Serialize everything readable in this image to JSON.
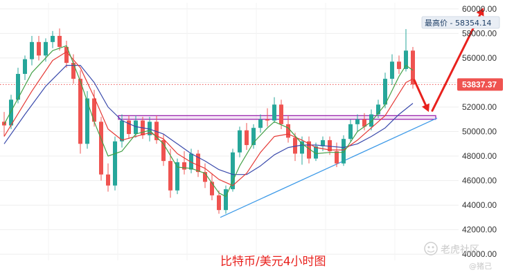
{
  "caption": "比特币/美元4小时图",
  "watermark": {
    "brand": "老虎社区",
    "user": "@猪己"
  },
  "chart_data": {
    "type": "candlestick",
    "title": "",
    "ylim": [
      39500,
      60500
    ],
    "y_ticks": [
      {
        "value": 60000,
        "label": "60000.00"
      },
      {
        "value": 58000,
        "label": "58000.00"
      },
      {
        "value": 56000,
        "label": "56000.00"
      },
      {
        "value": 54000,
        "label": "54000.00"
      },
      {
        "value": 52000,
        "label": "52000.00"
      },
      {
        "value": 50000,
        "label": "50000.00"
      },
      {
        "value": 48000,
        "label": "48000.00"
      },
      {
        "value": 46000,
        "label": "46000.00"
      },
      {
        "value": 44000,
        "label": "44000.00"
      },
      {
        "value": 42000,
        "label": "42000.00"
      },
      {
        "value": 40000,
        "label": "40000.00"
      }
    ],
    "current_price": {
      "value": 53837.37,
      "label": "53837.37"
    },
    "high_label": {
      "text": "最高价 - 58354.14",
      "value": 58354.14
    },
    "colors": {
      "up": "#26a69a",
      "down": "#ef5350",
      "ma_fast": "#43a047",
      "ma_mid": "#e53935",
      "ma_slow": "#3949ab",
      "trendline": "#3d9ae8",
      "resistance": "#9c27b0",
      "arrow": "#e8211d",
      "price_badge": "#ef5350"
    },
    "candles": [
      [
        50800,
        51600,
        49600,
        50500
      ],
      [
        50500,
        53000,
        50200,
        52600
      ],
      [
        52600,
        55200,
        52300,
        54700
      ],
      [
        54700,
        56200,
        54200,
        55900
      ],
      [
        55900,
        57800,
        55400,
        57300
      ],
      [
        57300,
        57800,
        55800,
        56200
      ],
      [
        56200,
        57600,
        55700,
        57300
      ],
      [
        57300,
        58200,
        56800,
        57800
      ],
      [
        57800,
        58400,
        56600,
        56900
      ],
      [
        56900,
        57400,
        55200,
        55600
      ],
      [
        55600,
        56300,
        53900,
        54300
      ],
      [
        54300,
        55000,
        48200,
        49000
      ],
      [
        49000,
        53300,
        48600,
        52700
      ],
      [
        52700,
        53400,
        50400,
        50800
      ],
      [
        50800,
        51200,
        46000,
        46500
      ],
      [
        46500,
        47400,
        45100,
        45600
      ],
      [
        45600,
        49600,
        45200,
        49200
      ],
      [
        49200,
        51400,
        48700,
        50900
      ],
      [
        50900,
        51300,
        49400,
        49800
      ],
      [
        49800,
        51300,
        49500,
        50900
      ],
      [
        50900,
        51200,
        49400,
        49700
      ],
      [
        49700,
        51200,
        49200,
        50800
      ],
      [
        50800,
        51300,
        49000,
        49300
      ],
      [
        49300,
        49800,
        47200,
        47600
      ],
      [
        47600,
        48600,
        44600,
        45200
      ],
      [
        45200,
        47800,
        44900,
        47500
      ],
      [
        47500,
        48400,
        46500,
        46900
      ],
      [
        46900,
        48600,
        46600,
        48200
      ],
      [
        48200,
        48500,
        46300,
        46700
      ],
      [
        46700,
        47400,
        45400,
        45900
      ],
      [
        45900,
        46600,
        44400,
        44800
      ],
      [
        44800,
        45200,
        43300,
        43600
      ],
      [
        43600,
        45600,
        43300,
        45300
      ],
      [
        45300,
        48600,
        45100,
        48300
      ],
      [
        48300,
        50400,
        47900,
        50100
      ],
      [
        50100,
        50700,
        48500,
        48900
      ],
      [
        48900,
        50600,
        48600,
        50300
      ],
      [
        50300,
        51400,
        49900,
        51000
      ],
      [
        51000,
        51900,
        50400,
        50900
      ],
      [
        50900,
        52800,
        50700,
        52200
      ],
      [
        52200,
        52600,
        50200,
        50600
      ],
      [
        50600,
        51300,
        49100,
        49500
      ],
      [
        49500,
        49900,
        47600,
        48200
      ],
      [
        48200,
        49600,
        47300,
        49200
      ],
      [
        49200,
        49600,
        47400,
        47800
      ],
      [
        47800,
        49100,
        47600,
        48800
      ],
      [
        48800,
        49600,
        48400,
        49300
      ],
      [
        49300,
        49600,
        48100,
        48400
      ],
      [
        48400,
        49100,
        47100,
        47400
      ],
      [
        47400,
        49700,
        47200,
        49400
      ],
      [
        49400,
        51000,
        49200,
        50600
      ],
      [
        50600,
        51400,
        50000,
        51000
      ],
      [
        51000,
        51500,
        50100,
        50400
      ],
      [
        50400,
        51800,
        50100,
        51400
      ],
      [
        51400,
        52600,
        51100,
        52200
      ],
      [
        52200,
        54800,
        51900,
        54300
      ],
      [
        54300,
        56300,
        53800,
        55700
      ],
      [
        55700,
        56200,
        54700,
        55100
      ],
      [
        55100,
        58354,
        54900,
        56600
      ],
      [
        56600,
        56900,
        53500,
        53837
      ]
    ],
    "ma_fast": [
      [
        0,
        50600
      ],
      [
        4,
        54800
      ],
      [
        7,
        56600
      ],
      [
        9,
        57000
      ],
      [
        11,
        54100
      ],
      [
        13,
        50800
      ],
      [
        15,
        48000
      ],
      [
        17,
        48400
      ],
      [
        19,
        49800
      ],
      [
        21,
        50100
      ],
      [
        23,
        49000
      ],
      [
        25,
        47100
      ],
      [
        27,
        47000
      ],
      [
        29,
        46600
      ],
      [
        31,
        45000
      ],
      [
        32,
        44700
      ],
      [
        34,
        47200
      ],
      [
        36,
        49100
      ],
      [
        38,
        50300
      ],
      [
        39,
        50800
      ],
      [
        41,
        50300
      ],
      [
        43,
        49000
      ],
      [
        45,
        48200
      ],
      [
        47,
        48300
      ],
      [
        49,
        48300
      ],
      [
        51,
        50000
      ],
      [
        53,
        50800
      ],
      [
        55,
        52200
      ],
      [
        57,
        54500
      ],
      [
        58,
        55400
      ],
      [
        59,
        55000
      ]
    ],
    "ma_mid": [
      [
        0,
        49600
      ],
      [
        4,
        53300
      ],
      [
        7,
        55800
      ],
      [
        9,
        56500
      ],
      [
        11,
        55200
      ],
      [
        13,
        52800
      ],
      [
        15,
        50200
      ],
      [
        17,
        49300
      ],
      [
        19,
        49600
      ],
      [
        21,
        49900
      ],
      [
        23,
        49400
      ],
      [
        25,
        48200
      ],
      [
        27,
        47500
      ],
      [
        29,
        47000
      ],
      [
        31,
        46100
      ],
      [
        33,
        45600
      ],
      [
        35,
        46600
      ],
      [
        37,
        48300
      ],
      [
        39,
        49600
      ],
      [
        41,
        49800
      ],
      [
        43,
        49300
      ],
      [
        45,
        48700
      ],
      [
        47,
        48500
      ],
      [
        49,
        48500
      ],
      [
        51,
        49300
      ],
      [
        53,
        50300
      ],
      [
        55,
        51300
      ],
      [
        57,
        53100
      ],
      [
        58,
        54000
      ],
      [
        59,
        54300
      ]
    ],
    "ma_slow": [
      [
        0,
        49000
      ],
      [
        3,
        51400
      ],
      [
        6,
        53700
      ],
      [
        9,
        55400
      ],
      [
        11,
        55400
      ],
      [
        13,
        54000
      ],
      [
        15,
        52000
      ],
      [
        17,
        50900
      ],
      [
        19,
        50400
      ],
      [
        21,
        50200
      ],
      [
        23,
        49800
      ],
      [
        25,
        49000
      ],
      [
        27,
        48200
      ],
      [
        29,
        47600
      ],
      [
        31,
        46900
      ],
      [
        33,
        46500
      ],
      [
        35,
        46500
      ],
      [
        37,
        47200
      ],
      [
        39,
        48100
      ],
      [
        41,
        48700
      ],
      [
        43,
        48900
      ],
      [
        45,
        48900
      ],
      [
        47,
        48800
      ],
      [
        49,
        48700
      ],
      [
        51,
        49000
      ],
      [
        53,
        49600
      ],
      [
        55,
        50300
      ],
      [
        57,
        51400
      ],
      [
        59,
        52300
      ]
    ],
    "trendline": [
      [
        31.2,
        43000
      ],
      [
        62.5,
        51100
      ]
    ],
    "resistance_band": {
      "x_start": 16.5,
      "x_end": 62.3,
      "y_low": 51000,
      "y_high": 51300
    },
    "arrow_down": [
      [
        59.2,
        54200
      ],
      [
        61.3,
        51600
      ]
    ],
    "arrow_up": [
      [
        61.8,
        51700
      ],
      [
        69.2,
        60100
      ]
    ]
  }
}
